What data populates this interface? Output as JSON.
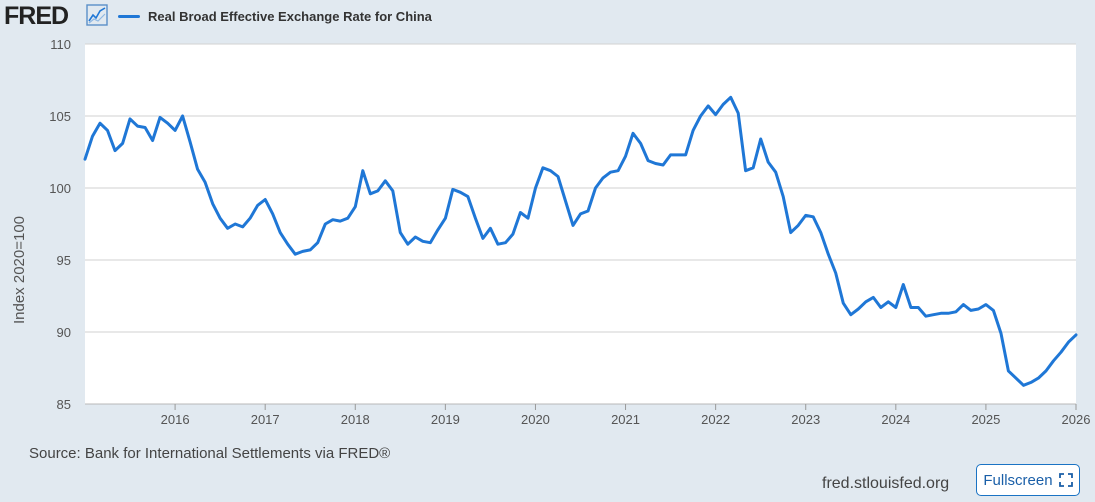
{
  "header": {
    "logo_text": "FRED",
    "logo_icon": "line-chart-icon",
    "legend_label": "Real Broad Effective Exchange Rate for China",
    "series_color": "#1f77d6"
  },
  "footer": {
    "source": "Source: Bank for International Settlements via FRED®",
    "site": "fred.stlouisfed.org",
    "fullscreen_label": "Fullscreen",
    "fullscreen_icon": "expand-icon"
  },
  "chart_data": {
    "type": "line",
    "ylabel": "Index 2020=100",
    "xlabel": "",
    "ylim": [
      85,
      110
    ],
    "xlim": [
      2015.0,
      2026.0
    ],
    "yticks": [
      85,
      90,
      95,
      100,
      105,
      110
    ],
    "xticks": [
      2016,
      2017,
      2018,
      2019,
      2020,
      2021,
      2022,
      2023,
      2024,
      2025,
      2026
    ],
    "grid": true,
    "legend_position": "top-left",
    "series": [
      {
        "name": "Real Broad Effective Exchange Rate for China",
        "color": "#1f77d6",
        "x": [
          2015.0,
          2015.083,
          2015.167,
          2015.25,
          2015.333,
          2015.417,
          2015.5,
          2015.583,
          2015.667,
          2015.75,
          2015.833,
          2015.917,
          2016.0,
          2016.083,
          2016.167,
          2016.25,
          2016.333,
          2016.417,
          2016.5,
          2016.583,
          2016.667,
          2016.75,
          2016.833,
          2016.917,
          2017.0,
          2017.083,
          2017.167,
          2017.25,
          2017.333,
          2017.417,
          2017.5,
          2017.583,
          2017.667,
          2017.75,
          2017.833,
          2017.917,
          2018.0,
          2018.083,
          2018.167,
          2018.25,
          2018.333,
          2018.417,
          2018.5,
          2018.583,
          2018.667,
          2018.75,
          2018.833,
          2018.917,
          2019.0,
          2019.083,
          2019.167,
          2019.25,
          2019.333,
          2019.417,
          2019.5,
          2019.583,
          2019.667,
          2019.75,
          2019.833,
          2019.917,
          2020.0,
          2020.083,
          2020.167,
          2020.25,
          2020.333,
          2020.417,
          2020.5,
          2020.583,
          2020.667,
          2020.75,
          2020.833,
          2020.917,
          2021.0,
          2021.083,
          2021.167,
          2021.25,
          2021.333,
          2021.417,
          2021.5,
          2021.583,
          2021.667,
          2021.75,
          2021.833,
          2021.917,
          2022.0,
          2022.083,
          2022.167,
          2022.25,
          2022.333,
          2022.417,
          2022.5,
          2022.583,
          2022.667,
          2022.75,
          2022.833,
          2022.917,
          2023.0,
          2023.083,
          2023.167,
          2023.25,
          2023.333,
          2023.417,
          2023.5,
          2023.583,
          2023.667,
          2023.75,
          2023.833,
          2023.917,
          2024.0,
          2024.083,
          2024.167,
          2024.25,
          2024.333,
          2024.417,
          2024.5,
          2024.583,
          2024.667,
          2024.75,
          2024.833,
          2024.917,
          2025.0,
          2025.083,
          2025.167,
          2025.25,
          2025.333,
          2025.417,
          2025.5,
          2025.583,
          2025.667,
          2025.75,
          2025.833,
          2025.917,
          2026.0
        ],
        "values": [
          102.0,
          103.6,
          104.5,
          104.0,
          102.6,
          103.1,
          104.8,
          104.3,
          104.2,
          103.3,
          104.9,
          104.5,
          104.0,
          105.0,
          103.2,
          101.3,
          100.4,
          98.9,
          97.9,
          97.2,
          97.5,
          97.3,
          97.9,
          98.8,
          99.2,
          98.2,
          96.9,
          96.1,
          95.4,
          95.6,
          95.7,
          96.2,
          97.5,
          97.8,
          97.7,
          97.9,
          98.7,
          101.2,
          99.6,
          99.8,
          100.5,
          99.8,
          96.9,
          96.1,
          96.6,
          96.3,
          96.2,
          97.1,
          97.9,
          99.9,
          99.7,
          99.4,
          97.9,
          96.5,
          97.2,
          96.1,
          96.2,
          96.8,
          98.3,
          97.9,
          100.0,
          101.4,
          101.2,
          100.8,
          99.1,
          97.4,
          98.2,
          98.4,
          100.0,
          100.7,
          101.1,
          101.2,
          102.2,
          103.8,
          103.1,
          101.9,
          101.7,
          101.6,
          102.3,
          102.3,
          102.3,
          104.0,
          105.0,
          105.7,
          105.1,
          105.8,
          106.3,
          105.2,
          101.2,
          101.4,
          103.4,
          101.8,
          101.1,
          99.4,
          96.9,
          97.4,
          98.1,
          98.0,
          96.9,
          95.4,
          94.1,
          92.0,
          91.2,
          91.6,
          92.1,
          92.4,
          91.7,
          92.1,
          91.7,
          93.3,
          91.7,
          91.7,
          91.1,
          91.2,
          91.3,
          91.3,
          91.4,
          91.9,
          91.5,
          91.6,
          91.9,
          91.5,
          89.9,
          87.3,
          86.8,
          86.3,
          86.5,
          86.8,
          87.3,
          88.0,
          88.6,
          89.3,
          89.8
        ]
      }
    ]
  }
}
